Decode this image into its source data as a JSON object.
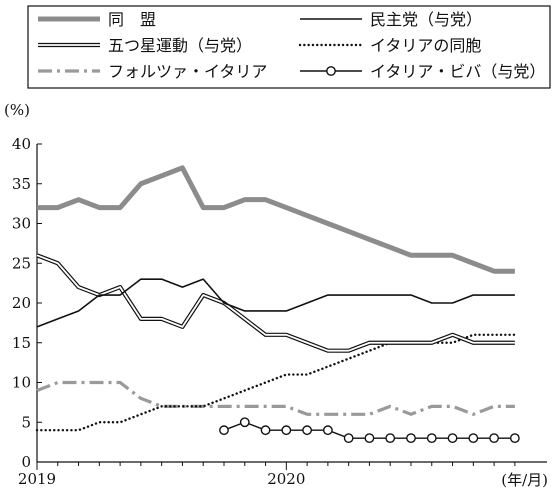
{
  "chart_data": {
    "type": "line",
    "title": "",
    "ylabel": "(%)",
    "xlabel": "(年/月)",
    "ylim": [
      0,
      40
    ],
    "yticks": [
      0,
      5,
      10,
      15,
      20,
      25,
      30,
      35,
      40
    ],
    "x_tick_labels": [
      {
        "label": "2019",
        "x": 0
      },
      {
        "label": "2020",
        "x": 12
      }
    ],
    "x_range": [
      0,
      23
    ],
    "legend_position": "top",
    "series": [
      {
        "name": "同　盟",
        "style": "thick-gray",
        "color": "#8c8c8c",
        "x": [
          0,
          1,
          2,
          3,
          4,
          5,
          6,
          7,
          8,
          9,
          10,
          11,
          12,
          13,
          14,
          15,
          16,
          17,
          18,
          19,
          20,
          21,
          22,
          23
        ],
        "values": [
          32,
          32,
          33,
          32,
          32,
          35,
          36,
          37,
          32,
          32,
          33,
          33,
          32,
          31,
          30,
          29,
          28,
          27,
          26,
          26,
          26,
          25,
          24,
          24
        ]
      },
      {
        "name": "民主党（与党）",
        "style": "solid-black",
        "color": "#111111",
        "x": [
          0,
          1,
          2,
          3,
          4,
          5,
          6,
          7,
          8,
          9,
          10,
          11,
          12,
          13,
          14,
          15,
          16,
          17,
          18,
          19,
          20,
          21,
          22,
          23
        ],
        "values": [
          17,
          18,
          19,
          21,
          21,
          23,
          23,
          22,
          23,
          20,
          19,
          19,
          19,
          20,
          21,
          21,
          21,
          21,
          21,
          20,
          20,
          21,
          21,
          21
        ]
      },
      {
        "name": "五つ星運動（与党）",
        "style": "double-line",
        "color": "#111111",
        "x": [
          0,
          1,
          2,
          3,
          4,
          5,
          6,
          7,
          8,
          9,
          10,
          11,
          12,
          13,
          14,
          15,
          16,
          17,
          18,
          19,
          20,
          21,
          22,
          23
        ],
        "values": [
          26,
          25,
          22,
          21,
          22,
          18,
          18,
          17,
          21,
          20,
          18,
          16,
          16,
          15,
          14,
          14,
          15,
          15,
          15,
          15,
          16,
          15,
          15,
          15
        ]
      },
      {
        "name": "イタリアの同胞",
        "style": "dotted",
        "color": "#111111",
        "x": [
          0,
          1,
          2,
          3,
          4,
          5,
          6,
          7,
          8,
          9,
          10,
          11,
          12,
          13,
          14,
          15,
          16,
          17,
          18,
          19,
          20,
          21,
          22,
          23
        ],
        "values": [
          4,
          4,
          4,
          5,
          5,
          6,
          7,
          7,
          7,
          8,
          9,
          10,
          11,
          11,
          12,
          13,
          14,
          15,
          15,
          15,
          15,
          16,
          16,
          16
        ]
      },
      {
        "name": "フォルツァ・イタリア",
        "style": "dash-dot-gray",
        "color": "#9a9a9a",
        "x": [
          0,
          1,
          2,
          3,
          4,
          5,
          6,
          7,
          8,
          9,
          10,
          11,
          12,
          13,
          14,
          15,
          16,
          17,
          18,
          19,
          20,
          21,
          22,
          23
        ],
        "values": [
          9,
          10,
          10,
          10,
          10,
          8,
          7,
          7,
          7,
          7,
          7,
          7,
          7,
          6,
          6,
          6,
          6,
          7,
          6,
          7,
          7,
          6,
          7,
          7
        ]
      },
      {
        "name": "イタリア・ビバ（与党）",
        "style": "circle-markers",
        "color": "#111111",
        "x": [
          9,
          10,
          11,
          12,
          13,
          14,
          15,
          16,
          17,
          18,
          19,
          20,
          21,
          22,
          23
        ],
        "values": [
          4,
          5,
          4,
          4,
          4,
          4,
          3,
          3,
          3,
          3,
          3,
          3,
          3,
          3,
          3
        ]
      }
    ]
  }
}
